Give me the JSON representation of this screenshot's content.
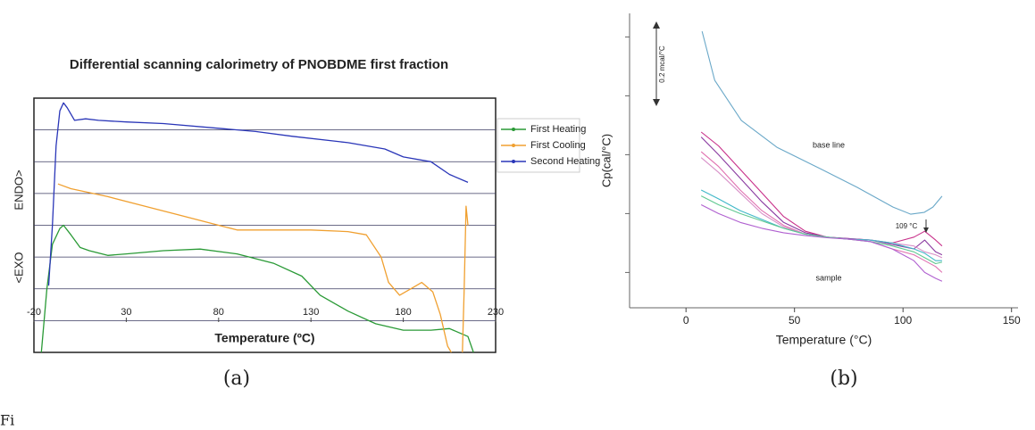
{
  "chart_data": [
    {
      "type": "line",
      "title": "Differential scanning calorimetry of PNOBDME first fraction",
      "xlabel": "Temperature (ºC)",
      "ylabels": [
        "ENDO>",
        "<EXO"
      ],
      "xlim": [
        -20,
        230
      ],
      "xticks": [
        -20,
        30,
        80,
        130,
        180,
        230
      ],
      "ylim": [
        0,
        8
      ],
      "yticks": [
        1,
        2,
        3,
        4,
        5,
        6,
        7
      ],
      "show_ytick_labels": false,
      "grid": true,
      "legend": "right",
      "series": [
        {
          "name": "First Heating",
          "color": "#2a9a36",
          "x": [
            -16,
            -13,
            -10,
            -6,
            -4,
            0,
            5,
            10,
            20,
            30,
            50,
            70,
            90,
            110,
            125,
            135,
            150,
            165,
            180,
            195,
            205,
            215,
            218
          ],
          "values": [
            0,
            2,
            3.4,
            3.9,
            4.0,
            3.7,
            3.3,
            3.2,
            3.05,
            3.1,
            3.2,
            3.25,
            3.1,
            2.8,
            2.4,
            1.8,
            1.3,
            0.9,
            0.7,
            0.7,
            0.75,
            0.5,
            0
          ]
        },
        {
          "name": "First Cooling",
          "color": "#f0a030",
          "x": [
            -7,
            0,
            20,
            40,
            60,
            80,
            90,
            110,
            130,
            150,
            160,
            168,
            172,
            178,
            184,
            190,
            196,
            200,
            204,
            206,
            209,
            212,
            213,
            214,
            215
          ],
          "values": [
            5.3,
            5.15,
            4.9,
            4.6,
            4.3,
            4.0,
            3.85,
            3.85,
            3.85,
            3.8,
            3.7,
            3.0,
            2.2,
            1.8,
            2.0,
            2.2,
            1.9,
            1.2,
            0.2,
            0,
            null,
            0,
            2,
            4.6,
            4.0
          ]
        },
        {
          "name": "Second Heating",
          "color": "#2a36b8",
          "x": [
            -12,
            -10,
            -8,
            -6,
            -4,
            -2,
            2,
            8,
            15,
            30,
            50,
            80,
            100,
            120,
            150,
            170,
            180,
            195,
            205,
            215
          ],
          "values": [
            2.1,
            4,
            6.5,
            7.6,
            7.85,
            7.7,
            7.3,
            7.35,
            7.3,
            7.25,
            7.2,
            7.05,
            6.95,
            6.8,
            6.6,
            6.4,
            6.15,
            6.0,
            5.6,
            5.35
          ]
        }
      ]
    },
    {
      "type": "line",
      "xlabel": "Temperature (°C)",
      "ylabel": "Cp(cal/°C)",
      "xlim": [
        -26,
        153
      ],
      "xticks": [
        0,
        50,
        100,
        150
      ],
      "ylim": [
        0,
        10
      ],
      "yticks": [
        1.2,
        3.2,
        5.2,
        7.2,
        9.2
      ],
      "show_ytick_labels": false,
      "grid": false,
      "annotations": [
        "0.2 mcal/°C",
        "base line",
        "109 °C",
        "sample"
      ],
      "series": [
        {
          "color": "#6aa8c8",
          "x": [
            7.4,
            13.2,
            25.5,
            41.9,
            62.5,
            78.9,
            95.4,
            103.6,
            109.7,
            113.8,
            118
          ],
          "values": [
            9.39,
            7.73,
            6.36,
            5.45,
            4.7,
            4.09,
            3.42,
            3.18,
            3.24,
            3.42,
            3.79
          ]
        },
        {
          "color": "#c8308a",
          "x": [
            7,
            15,
            25,
            35,
            45,
            55,
            65,
            75,
            85,
            95,
            105,
            110,
            115,
            118
          ],
          "values": [
            5.97,
            5.5,
            4.7,
            3.9,
            3.1,
            2.6,
            2.4,
            2.35,
            2.3,
            2.2,
            2.4,
            2.6,
            2.3,
            2.1
          ]
        },
        {
          "color": "#8a3aa0",
          "x": [
            7,
            15,
            25,
            35,
            45,
            55,
            65,
            75,
            85,
            95,
            105,
            110,
            115,
            118
          ],
          "values": [
            5.8,
            5.2,
            4.4,
            3.6,
            2.9,
            2.55,
            2.4,
            2.35,
            2.3,
            2.15,
            2.0,
            2.3,
            1.9,
            1.8
          ]
        },
        {
          "color": "#e070b0",
          "x": [
            7,
            15,
            25,
            35,
            45,
            55,
            65,
            75,
            85,
            95,
            105,
            110,
            115,
            118
          ],
          "values": [
            5.3,
            4.8,
            4.0,
            3.3,
            2.8,
            2.5,
            2.4,
            2.33,
            2.25,
            2.0,
            1.8,
            1.6,
            1.4,
            1.2
          ]
        },
        {
          "color": "#d890c8",
          "x": [
            7,
            15,
            25,
            35,
            45,
            55,
            65,
            75,
            85,
            95,
            105,
            110,
            115,
            118
          ],
          "values": [
            5.1,
            4.6,
            3.9,
            3.2,
            2.75,
            2.5,
            2.4,
            2.33,
            2.3,
            2.2,
            2.1,
            1.9,
            1.8,
            1.7
          ]
        },
        {
          "color": "#40b8c8",
          "x": [
            7,
            15,
            25,
            35,
            45,
            55,
            65,
            75,
            85,
            95,
            105,
            110,
            115,
            118
          ],
          "values": [
            4.0,
            3.7,
            3.3,
            3.0,
            2.7,
            2.5,
            2.4,
            2.33,
            2.3,
            2.2,
            2.0,
            1.85,
            1.6,
            1.6
          ]
        },
        {
          "color": "#60c890",
          "x": [
            7,
            15,
            25,
            35,
            45,
            55,
            65,
            75,
            85,
            95,
            105,
            110,
            115,
            118
          ],
          "values": [
            3.8,
            3.5,
            3.2,
            2.95,
            2.7,
            2.5,
            2.4,
            2.33,
            2.25,
            2.1,
            1.9,
            1.7,
            1.5,
            1.55
          ]
        },
        {
          "color": "#b060d0",
          "x": [
            7,
            15,
            25,
            35,
            45,
            55,
            65,
            75,
            85,
            95,
            105,
            110,
            115,
            118
          ],
          "values": [
            3.5,
            3.2,
            2.9,
            2.7,
            2.55,
            2.45,
            2.38,
            2.33,
            2.25,
            2.0,
            1.6,
            1.2,
            1.0,
            0.9
          ]
        }
      ]
    }
  ],
  "panel_labels": [
    "(a)",
    "(b)"
  ],
  "caption": "Fi"
}
